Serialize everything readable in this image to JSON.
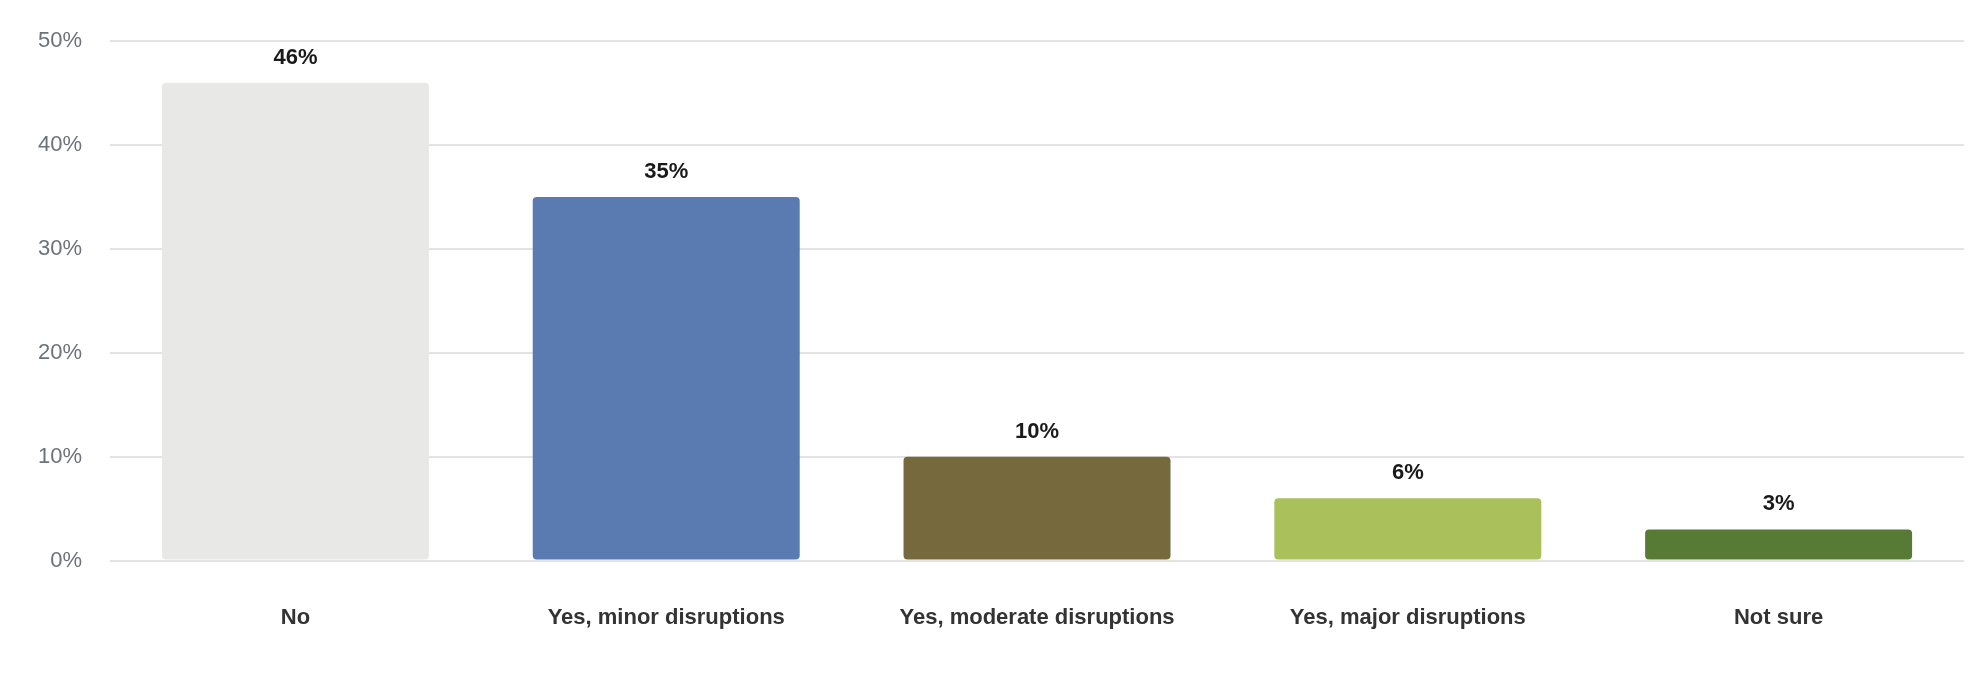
{
  "chart_data": {
    "type": "bar",
    "categories": [
      "No",
      "Yes, minor disruptions",
      "Yes, moderate disruptions",
      "Yes, major disruptions",
      "Not sure"
    ],
    "values": [
      46,
      35,
      10,
      6,
      3
    ],
    "colors": [
      "#e8e8e6",
      "#5a7bb2",
      "#76693d",
      "#aac05a",
      "#577a35"
    ],
    "value_labels": [
      "46%",
      "35%",
      "10%",
      "6%",
      "3%"
    ],
    "ylim": [
      0,
      50
    ],
    "yticks": [
      {
        "value": 0,
        "label": "0%"
      },
      {
        "value": 10,
        "label": "10%"
      },
      {
        "value": 20,
        "label": "20%"
      },
      {
        "value": 30,
        "label": "30%"
      },
      {
        "value": 40,
        "label": "40%"
      },
      {
        "value": 50,
        "label": "50%"
      }
    ],
    "grid": "y",
    "legend": false
  }
}
